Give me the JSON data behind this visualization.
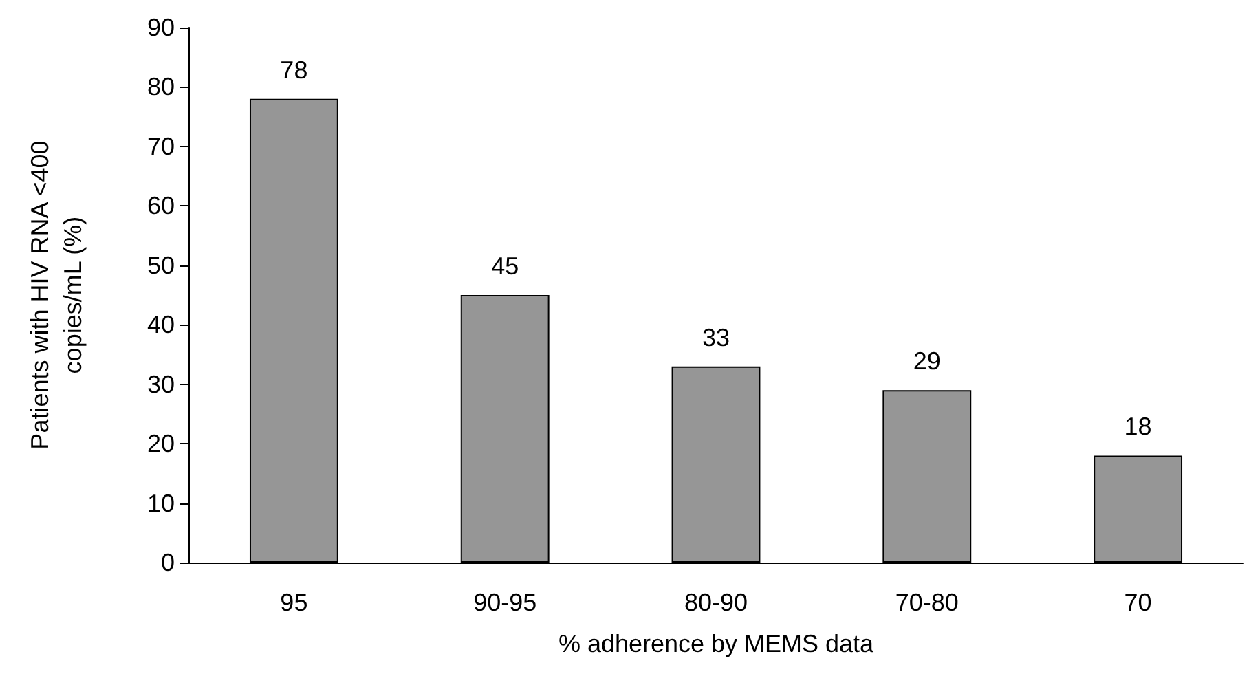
{
  "chart_data": {
    "type": "bar",
    "xlabel": "% adherence by MEMS data",
    "ylabel": "Patients with HIV RNA <400\ncopies/mL (%)",
    "categories": [
      "95",
      "90-95",
      "80-90",
      "70-80",
      "70"
    ],
    "values": [
      78,
      45,
      33,
      29,
      18
    ],
    "color": "#969696",
    "data_labels": true,
    "ylim": [
      0,
      90
    ],
    "yticks": [
      0,
      10,
      20,
      30,
      40,
      50,
      60,
      70,
      80,
      90
    ],
    "grid": false
  }
}
